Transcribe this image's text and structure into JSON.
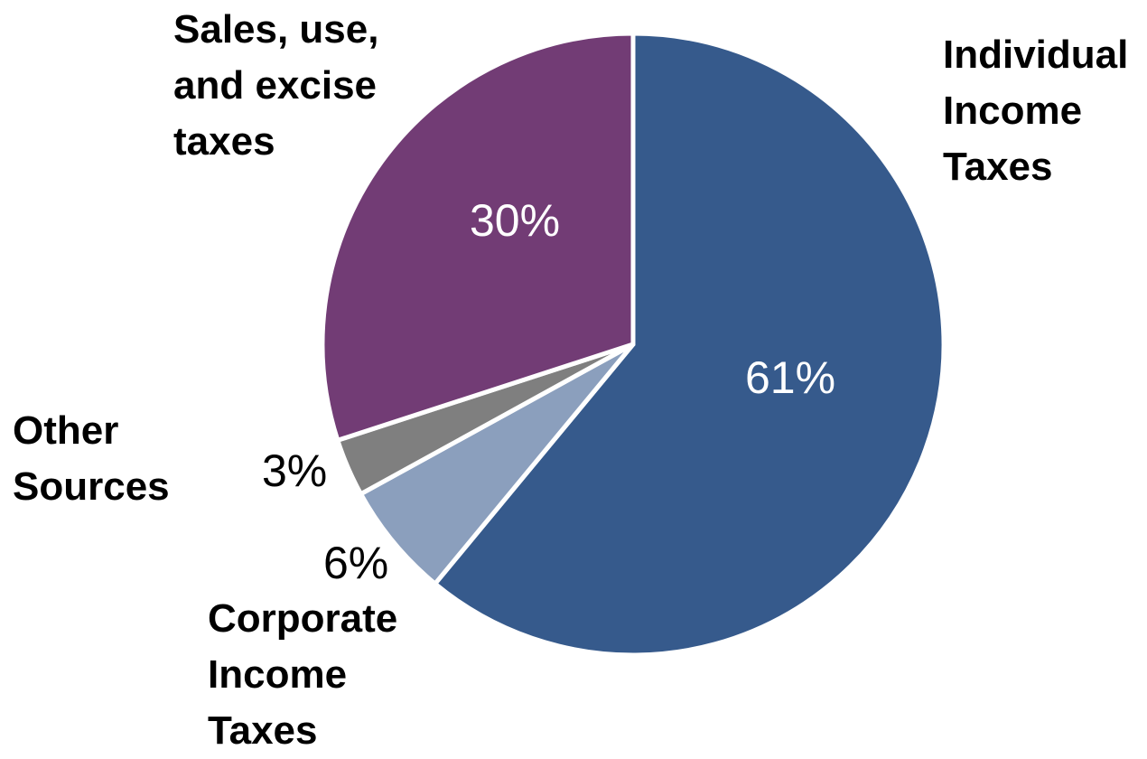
{
  "chart_data": {
    "type": "pie",
    "title": "",
    "categories": [
      "Individual Income Taxes",
      "Corporate Income Taxes",
      "Other Sources",
      "Sales, use, and excise taxes"
    ],
    "category_labels": [
      "Individual\nIncome\nTaxes",
      "Corporate\nIncome\nTaxes",
      "Other\nSources",
      "Sales, use,\nand excise\ntaxes"
    ],
    "values": [
      61,
      6,
      3,
      30
    ],
    "value_labels": [
      "61%",
      "6%",
      "3%",
      "30%"
    ],
    "colors": [
      "#365a8c",
      "#8b9fbd",
      "#7f7f7f",
      "#723c75"
    ],
    "value_label_colors": [
      "#ffffff",
      "#000000",
      "#000000",
      "#ffffff"
    ],
    "start": "12 o'clock",
    "direction": "clockwise",
    "legend": "none"
  }
}
